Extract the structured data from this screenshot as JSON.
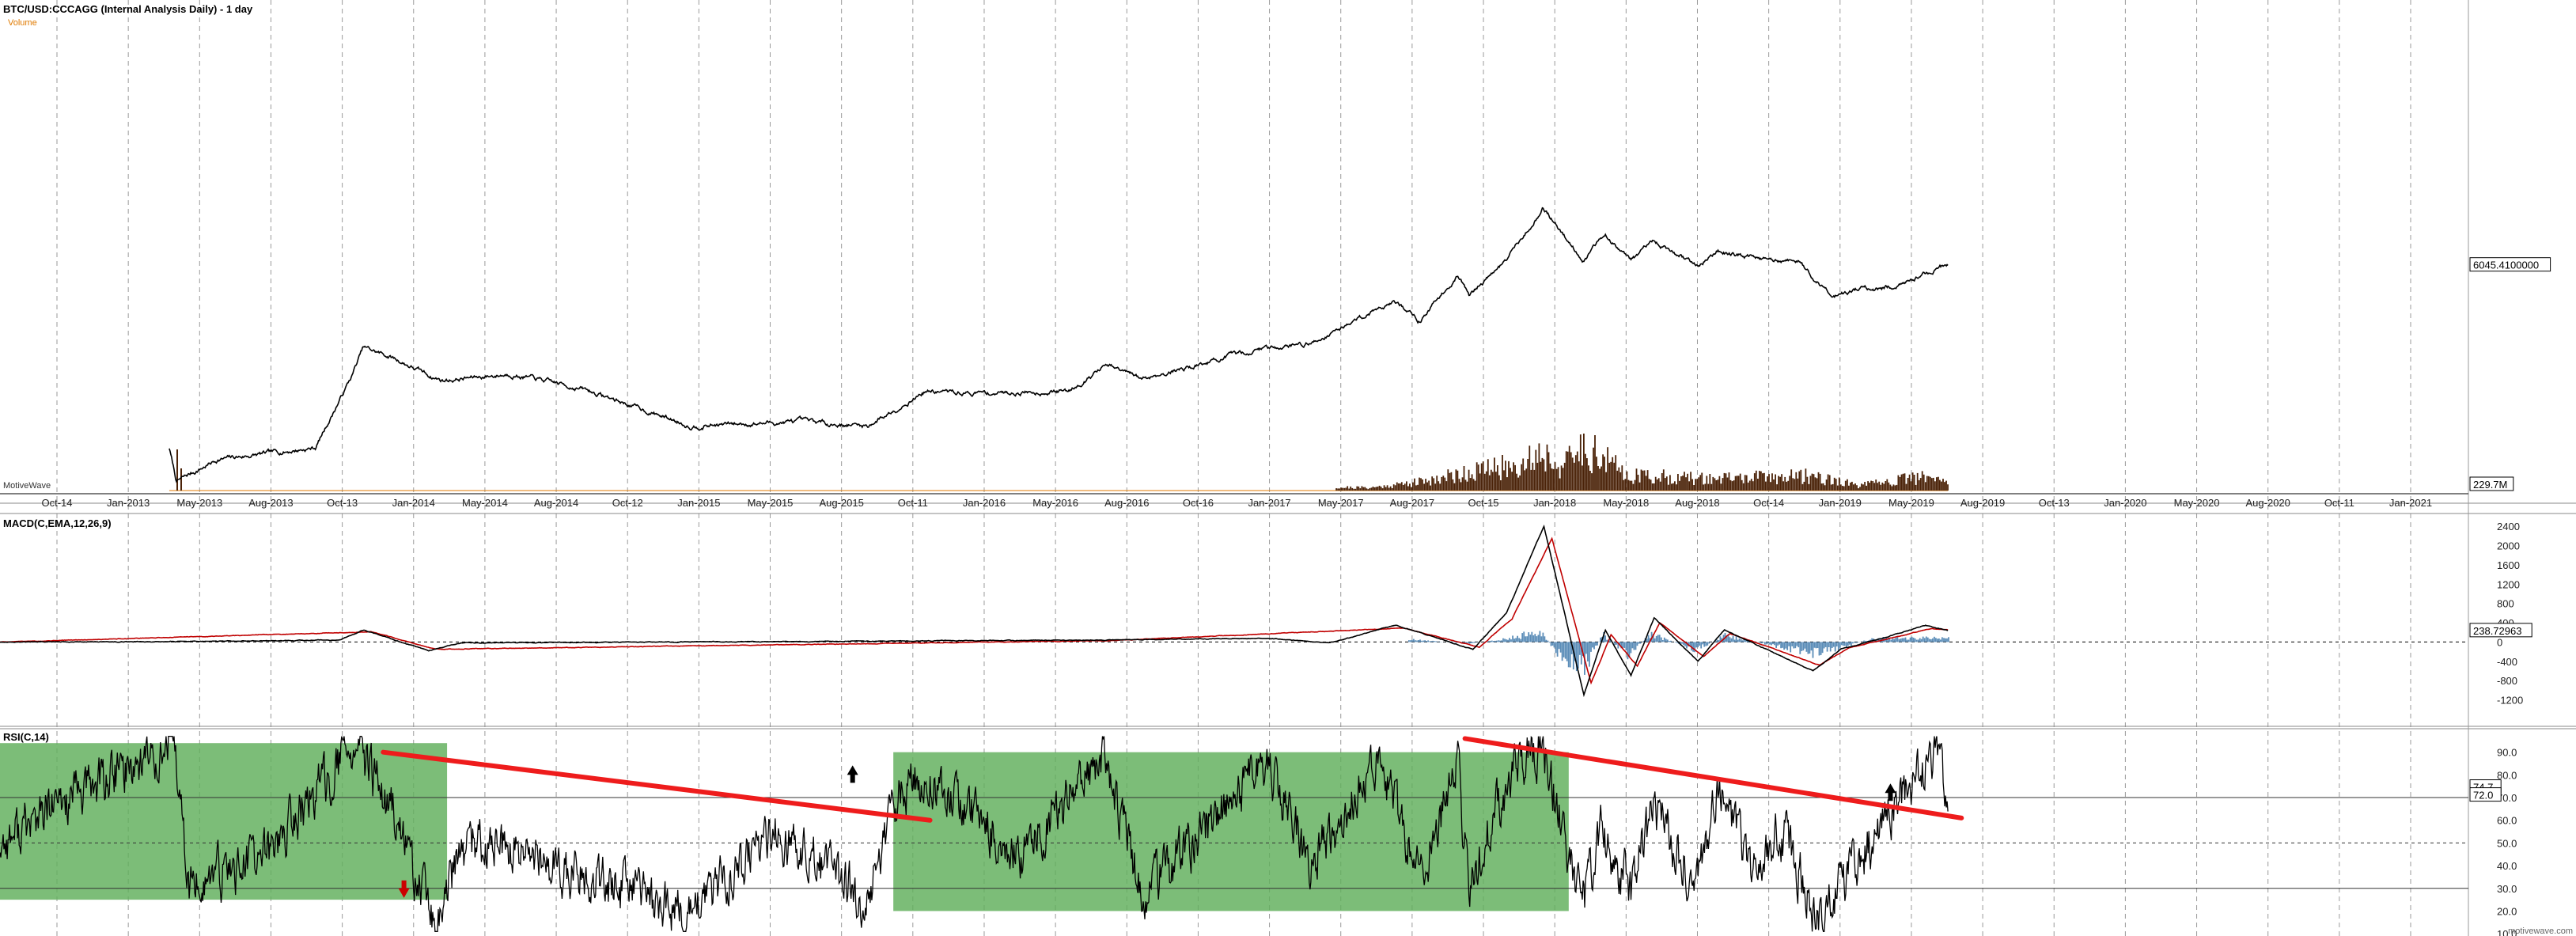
{
  "header": {
    "title": "BTC/USD:CCCAGG (Internal Analysis Daily) - 1 day",
    "volume_label": "Volume",
    "brand_label": "MotiveWave",
    "footer": "motivewave.com"
  },
  "colors": {
    "price": "#000000",
    "volume": "#4a2208",
    "volume_line": "#e07a00",
    "macd_line": "#000000",
    "signal_line": "#c00000",
    "histogram": "#5b8db8",
    "rsi_line": "#000000",
    "rsi_zone": "#5fae5a",
    "trendline": "#ee1c1c",
    "arrow_up": "#000000",
    "arrow_down": "#cc0000"
  },
  "chart_data": [
    {
      "type": "line",
      "name": "price",
      "title": "BTC/USD:CCCAGG (Internal Analysis Daily) - 1 day",
      "y_scale": "log",
      "x_tick_labels": [
        "Oct-14",
        "Jan-2013",
        "May-2013",
        "Aug-2013",
        "Oct-13",
        "Jan-2014",
        "May-2014",
        "Aug-2014",
        "Oct-12",
        "Jan-2015",
        "May-2015",
        "Aug-2015",
        "Oct-11",
        "Jan-2016",
        "May-2016",
        "Aug-2016",
        "Oct-16",
        "Jan-2017",
        "May-2017",
        "Aug-2017",
        "Oct-15",
        "Jan-2018",
        "May-2018",
        "Aug-2018",
        "Oct-14",
        "Jan-2019",
        "May-2019",
        "Aug-2019",
        "Oct-13",
        "Jan-2020",
        "May-2020",
        "Aug-2020",
        "Oct-11",
        "Jan-2021"
      ],
      "x_start": "2012-09-01",
      "x_end": "2021-02-15",
      "last_date": "2019-05-08",
      "current_price_label": "6045.4100000",
      "volume_label_value": "229.7M",
      "series": [
        {
          "x": [
            "2013-04-01",
            "2013-04-10",
            "2013-06-01",
            "2013-10-01",
            "2013-11-15",
            "2013-11-30",
            "2014-01-05",
            "2014-02-25",
            "2014-03-10",
            "2014-06-03",
            "2014-09-01",
            "2015-01-14",
            "2015-06-01",
            "2015-08-24",
            "2015-11-04",
            "2016-01-01",
            "2016-05-01",
            "2016-06-17",
            "2016-08-01",
            "2017-01-04",
            "2017-03-01",
            "2017-06-12",
            "2017-07-16",
            "2017-09-01",
            "2017-09-15",
            "2017-11-01",
            "2017-12-17",
            "2018-02-06",
            "2018-03-05",
            "2018-04-06",
            "2018-05-05",
            "2018-06-29",
            "2018-07-24",
            "2018-09-01",
            "2018-11-01",
            "2018-12-15",
            "2019-01-15",
            "2019-03-15",
            "2019-04-05",
            "2019-05-08"
          ],
          "y": [
            140,
            70,
            110,
            140,
            600,
            1100,
            900,
            600,
            560,
            640,
            470,
            220,
            240,
            220,
            450,
            430,
            450,
            760,
            580,
            1100,
            1200,
            2900,
            1900,
            4950,
            3200,
            6700,
            19500,
            6600,
            11500,
            6600,
            9800,
            5900,
            8200,
            7000,
            6400,
            3200,
            3600,
            3900,
            5000,
            6045
          ]
        }
      ],
      "volume": {
        "x": [
          "2013-04-10",
          "2017-05-15",
          "2017-07-15",
          "2017-09-15",
          "2017-11-15",
          "2017-12-15",
          "2018-01-10",
          "2018-02-06",
          "2018-04-01",
          "2018-07-01",
          "2018-11-20",
          "2019-01-15",
          "2019-04-05",
          "2019-05-08"
        ],
        "values": [
          70,
          15,
          45,
          95,
          130,
          200,
          120,
          230,
          80,
          60,
          75,
          25,
          70,
          40
        ],
        "unit": "M"
      }
    },
    {
      "type": "line",
      "title": "MACD(C,EMA,12,26,9)",
      "y_ticks": [
        2400,
        2000,
        1600,
        1200,
        800,
        400,
        0,
        -400,
        -800,
        -1200
      ],
      "ylim": [
        -1750,
        2650
      ],
      "current_value_label": "238.72963",
      "macd": {
        "x": [
          "2012-09-01",
          "2013-04-12",
          "2013-11-01",
          "2013-12-01",
          "2014-01-05",
          "2014-02-20",
          "2014-04-01",
          "2016-06-20",
          "2017-01-05",
          "2017-03-25",
          "2017-06-15",
          "2017-09-20",
          "2017-11-01",
          "2017-12-18",
          "2018-02-06",
          "2018-03-05",
          "2018-04-06",
          "2018-05-05",
          "2018-06-29",
          "2018-08-01",
          "2018-11-20",
          "2018-12-25",
          "2019-02-01",
          "2019-04-10",
          "2019-05-08"
        ],
        "y": [
          0,
          10,
          40,
          250,
          60,
          -180,
          -20,
          40,
          80,
          -20,
          350,
          -150,
          600,
          2400,
          -1100,
          250,
          -700,
          500,
          -400,
          250,
          -600,
          -150,
          20,
          340,
          240
        ]
      },
      "signal": {
        "x": [
          "2012-09-01",
          "2013-12-10",
          "2014-02-28",
          "2016-06-25",
          "2017-06-25",
          "2017-09-28",
          "2017-11-08",
          "2017-12-28",
          "2018-02-15",
          "2018-03-12",
          "2018-04-14",
          "2018-05-12",
          "2018-07-06",
          "2018-08-08",
          "2018-11-28",
          "2019-01-05",
          "2019-04-18",
          "2019-05-08"
        ],
        "y": [
          0,
          210,
          -150,
          30,
          290,
          -110,
          480,
          2150,
          -850,
          150,
          -500,
          400,
          -300,
          180,
          -480,
          -120,
          280,
          250
        ]
      },
      "histogram": {
        "x": [
          "2017-07-01",
          "2017-09-15",
          "2017-11-15",
          "2017-12-10",
          "2018-01-05",
          "2018-02-05",
          "2018-03-01",
          "2018-04-01",
          "2018-05-01",
          "2018-06-25",
          "2018-08-01",
          "2018-11-25",
          "2019-02-01",
          "2019-04-10"
        ],
        "values": [
          60,
          -40,
          120,
          300,
          -300,
          -650,
          180,
          -300,
          200,
          -200,
          150,
          -300,
          80,
          90
        ]
      }
    },
    {
      "type": "line",
      "title": "RSI(C,14)",
      "y_ticks": [
        90.0,
        80.0,
        70.0,
        60.0,
        50.0,
        40.0,
        30.0,
        20.0,
        10.0
      ],
      "ylim": [
        9,
        100
      ],
      "current_value_labels": [
        "74.7",
        "72.0"
      ],
      "levels": [
        70,
        50,
        30
      ],
      "rsi": {
        "x": [
          "2012-09-01",
          "2012-12-01",
          "2013-02-15",
          "2013-04-08",
          "2013-04-25",
          "2013-08-01",
          "2013-11-20",
          "2014-01-10",
          "2014-02-25",
          "2014-04-10",
          "2014-08-01",
          "2015-01-14",
          "2015-05-01",
          "2015-08-20",
          "2015-10-01",
          "2015-11-10",
          "2016-03-01",
          "2016-06-16",
          "2016-08-02",
          "2017-01-04",
          "2017-03-01",
          "2017-05-25",
          "2017-07-16",
          "2017-09-01",
          "2017-09-15",
          "2017-11-05",
          "2017-12-17",
          "2018-01-20",
          "2018-02-06",
          "2018-03-01",
          "2018-04-06",
          "2018-05-05",
          "2018-06-29",
          "2018-07-24",
          "2018-09-01",
          "2018-10-15",
          "2018-11-25",
          "2018-12-20",
          "2019-02-10",
          "2019-04-05",
          "2019-04-25",
          "2019-05-08"
        ],
        "y": [
          50,
          70,
          85,
          92,
          30,
          45,
          93,
          60,
          14,
          50,
          40,
          18,
          55,
          25,
          72,
          80,
          45,
          88,
          25,
          87,
          40,
          88,
          35,
          85,
          30,
          80,
          93,
          40,
          25,
          55,
          30,
          65,
          30,
          73,
          40,
          55,
          14,
          30,
          55,
          80,
          88,
          74.7
        ]
      },
      "zones": [
        {
          "x": [
            "2012-09-01",
            "2014-03-15"
          ],
          "y": [
            25,
            94
          ]
        },
        {
          "x": [
            "2015-09-25",
            "2018-01-18"
          ],
          "y": [
            20,
            90
          ]
        }
      ],
      "trendlines": [
        {
          "x": [
            "2013-12-25",
            "2015-11-10"
          ],
          "y": [
            90,
            60
          ]
        },
        {
          "x": [
            "2017-09-10",
            "2019-05-25"
          ],
          "y": [
            96,
            61
          ]
        }
      ],
      "arrows": [
        {
          "x": "2014-01-20",
          "y": 30,
          "direction": "down"
        },
        {
          "x": "2015-08-05",
          "y": 80,
          "direction": "up"
        },
        {
          "x": "2019-02-25",
          "y": 72,
          "direction": "up"
        }
      ]
    }
  ]
}
